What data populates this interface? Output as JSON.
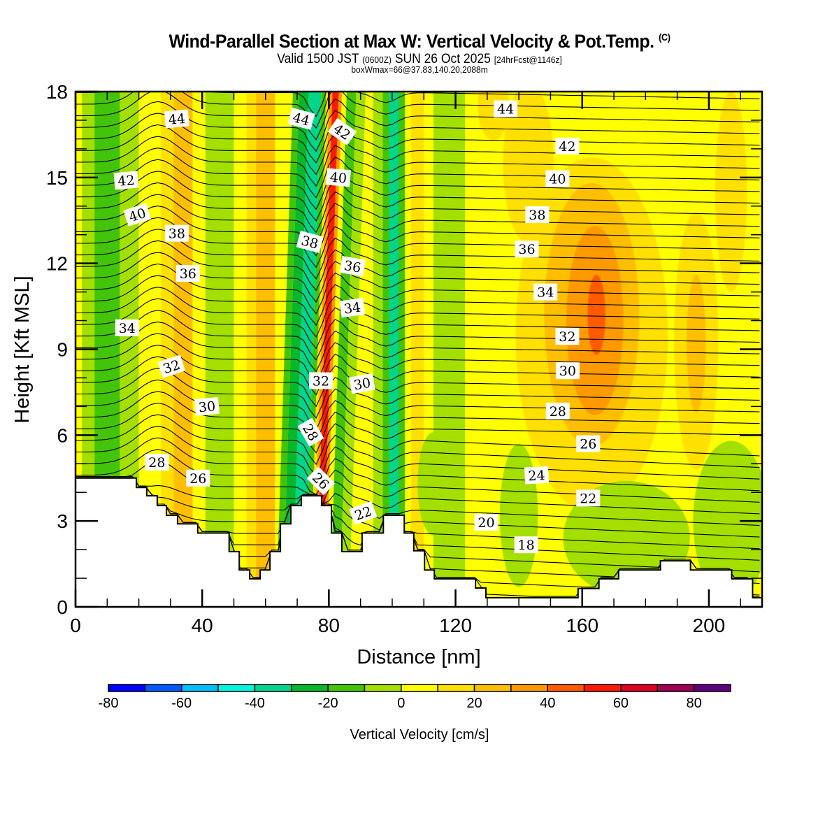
{
  "header": {
    "title": "Wind-Parallel Section at Max W: Vertical Velocity & Pot.Temp.",
    "copyright": "(C)",
    "valid_prefix": "Valid 1500 JST",
    "valid_utc": "(0600Z)",
    "valid_date": "SUN 26 Oct 2025",
    "forecast": "[24hrFcst@1146z]",
    "box_info": "boxWmax=66@37.83,140.20,2088m"
  },
  "chart_data": {
    "type": "heatmap",
    "title": "Wind-Parallel Section at Max W: Vertical Velocity & Pot.Temp.",
    "xlabel": "Distance [nm]",
    "ylabel": "Height [Kft MSL]",
    "xlim": [
      0,
      216.8
    ],
    "ylim": [
      0,
      18
    ],
    "x_ticks": [
      "0",
      "40",
      "80",
      "120",
      "160",
      "200"
    ],
    "x_tick_values": [
      0,
      40,
      80,
      120,
      160,
      200
    ],
    "y_ticks": [
      "0",
      "3",
      "6",
      "9",
      "12",
      "15",
      "18"
    ],
    "y_tick_values": [
      0,
      3,
      6,
      9,
      12,
      15,
      18
    ],
    "colorbar": {
      "label": "Vertical Velocity [cm/s]",
      "levels": [
        -80,
        -70,
        -60,
        -50,
        -40,
        -30,
        -20,
        -10,
        0,
        10,
        20,
        30,
        40,
        50,
        60,
        70,
        80,
        90
      ],
      "tick_labels": [
        "-80",
        "-60",
        "-40",
        "-20",
        "0",
        "20",
        "40",
        "60",
        "80"
      ],
      "tick_values": [
        -80,
        -60,
        -40,
        -20,
        0,
        20,
        40,
        60,
        80
      ],
      "colors": [
        "#0000ff",
        "#0059ff",
        "#00bfff",
        "#00f5e0",
        "#00d68a",
        "#07b82c",
        "#42c40a",
        "#a3e000",
        "#ffff00",
        "#ffe000",
        "#ffbf00",
        "#ff9900",
        "#ff5a00",
        "#ff1a00",
        "#de0020",
        "#9c0050",
        "#5e0080"
      ]
    },
    "w_field_columns": [
      {
        "x0": 0,
        "x1": 2,
        "w": 5
      },
      {
        "x0": 2,
        "x1": 6,
        "w": -5
      },
      {
        "x0": 6,
        "x1": 14,
        "w": -15
      },
      {
        "x0": 14,
        "x1": 20,
        "w": -5
      },
      {
        "x0": 20,
        "x1": 27,
        "w": 5
      },
      {
        "x0": 27,
        "x1": 31,
        "w": 15
      },
      {
        "x0": 31,
        "x1": 37,
        "w": 25
      },
      {
        "x0": 37,
        "x1": 41,
        "w": 5
      },
      {
        "x0": 41,
        "x1": 50,
        "w": -5
      },
      {
        "x0": 50,
        "x1": 54,
        "w": 5
      },
      {
        "x0": 54,
        "x1": 57,
        "w": 15
      },
      {
        "x0": 57,
        "x1": 63,
        "w": 25
      },
      {
        "x0": 63,
        "x1": 66,
        "w": 5
      },
      {
        "x0": 66,
        "x1": 68,
        "w": -15
      },
      {
        "x0": 68,
        "x1": 71,
        "w": -25
      },
      {
        "x0": 71,
        "x1": 75,
        "w": -35
      },
      {
        "x0": 75,
        "x1": 76.5,
        "w": -15
      },
      {
        "x0": 76.5,
        "x1": 77.5,
        "w": 15
      },
      {
        "x0": 77.5,
        "x1": 78.5,
        "w": 35
      },
      {
        "x0": 78.5,
        "x1": 80.5,
        "w": 55
      },
      {
        "x0": 80.5,
        "x1": 81.5,
        "w": 35
      },
      {
        "x0": 81.5,
        "x1": 83,
        "w": 5
      },
      {
        "x0": 83,
        "x1": 86,
        "w": -15
      },
      {
        "x0": 86,
        "x1": 89,
        "w": -5
      },
      {
        "x0": 89,
        "x1": 94,
        "w": 5
      },
      {
        "x0": 94,
        "x1": 97,
        "w": -5
      },
      {
        "x0": 97,
        "x1": 99,
        "w": -15
      },
      {
        "x0": 99,
        "x1": 102,
        "w": -35
      },
      {
        "x0": 102,
        "x1": 104,
        "w": -15
      },
      {
        "x0": 104,
        "x1": 106,
        "w": 5
      },
      {
        "x0": 106,
        "x1": 110,
        "w": 15
      },
      {
        "x0": 110,
        "x1": 113,
        "w": 5
      },
      {
        "x0": 113,
        "x1": 123,
        "w": -5
      },
      {
        "x0": 123,
        "x1": 128,
        "w": 5
      },
      {
        "x0": 128,
        "x1": 216.8,
        "w": 5
      }
    ],
    "w_field_blobs": [
      {
        "cx": 143,
        "cy": 15.5,
        "rx": 8,
        "ry": 2.8,
        "w": 15
      },
      {
        "cx": 163,
        "cy": 9.5,
        "rx": 24,
        "ry": 6.2,
        "w": 15
      },
      {
        "cx": 163,
        "cy": 10.2,
        "rx": 15,
        "ry": 4.6,
        "w": 25
      },
      {
        "cx": 164,
        "cy": 10.0,
        "rx": 9,
        "ry": 3.3,
        "w": 35
      },
      {
        "cx": 164.5,
        "cy": 10.2,
        "rx": 2.8,
        "ry": 1.4,
        "w": 45
      },
      {
        "cx": 196,
        "cy": 9.3,
        "rx": 7,
        "ry": 4.5,
        "w": 15
      },
      {
        "cx": 196,
        "cy": 9.2,
        "rx": 3,
        "ry": 2.4,
        "w": 25
      },
      {
        "cx": 207,
        "cy": 14.5,
        "rx": 5,
        "ry": 3.5,
        "w": 15
      },
      {
        "cx": 140,
        "cy": 3.2,
        "rx": 6,
        "ry": 2.5,
        "w": -5
      },
      {
        "cx": 174,
        "cy": 2.4,
        "rx": 20,
        "ry": 2.0,
        "w": -5
      },
      {
        "cx": 207,
        "cy": 3.0,
        "rx": 12,
        "ry": 2.8,
        "w": -5
      },
      {
        "cx": 113,
        "cy": 4.3,
        "rx": 5,
        "ry": 1.8,
        "w": -5
      },
      {
        "cx": 132,
        "cy": 17.5,
        "rx": 5,
        "ry": 1.2,
        "w": 15
      }
    ],
    "terrain": [
      [
        0,
        4.5
      ],
      [
        19.2,
        4.5
      ],
      [
        19.2,
        4.17
      ],
      [
        22.5,
        4.17
      ],
      [
        22.5,
        3.88
      ],
      [
        25.8,
        3.88
      ],
      [
        25.8,
        3.54
      ],
      [
        28.7,
        3.54
      ],
      [
        28.7,
        3.2
      ],
      [
        32.2,
        3.2
      ],
      [
        32.2,
        2.9
      ],
      [
        38.6,
        2.9
      ],
      [
        38.6,
        2.58
      ],
      [
        48.5,
        2.58
      ],
      [
        48.5,
        1.93
      ],
      [
        51.7,
        1.93
      ],
      [
        51.7,
        1.29
      ],
      [
        55,
        1.29
      ],
      [
        55,
        0.98
      ],
      [
        58.3,
        0.98
      ],
      [
        58.3,
        1.29
      ],
      [
        61.4,
        1.29
      ],
      [
        61.4,
        1.93
      ],
      [
        64.7,
        1.93
      ],
      [
        64.7,
        2.9
      ],
      [
        68,
        2.9
      ],
      [
        68,
        3.54
      ],
      [
        71.3,
        3.54
      ],
      [
        71.3,
        3.88
      ],
      [
        77.7,
        3.88
      ],
      [
        77.7,
        3.54
      ],
      [
        80.8,
        3.54
      ],
      [
        80.8,
        2.58
      ],
      [
        84.1,
        2.58
      ],
      [
        84.1,
        1.93
      ],
      [
        88,
        1.93
      ],
      [
        88,
        1.93
      ],
      [
        90.5,
        1.93
      ],
      [
        90.5,
        2.58
      ],
      [
        97.2,
        2.58
      ],
      [
        97.2,
        3.2
      ],
      [
        103.8,
        3.2
      ],
      [
        103.8,
        2.58
      ],
      [
        106.8,
        2.58
      ],
      [
        106.8,
        1.96
      ],
      [
        110.2,
        1.96
      ],
      [
        110.2,
        1.29
      ],
      [
        113.3,
        1.29
      ],
      [
        113.3,
        0.98
      ],
      [
        126.3,
        0.98
      ],
      [
        126.3,
        0.66
      ],
      [
        129.6,
        0.66
      ],
      [
        129.6,
        0.32
      ],
      [
        158.7,
        0.32
      ],
      [
        158.7,
        0.64
      ],
      [
        165.3,
        0.64
      ],
      [
        165.3,
        0.98
      ],
      [
        171.5,
        0.98
      ],
      [
        171.5,
        1.29
      ],
      [
        184.7,
        1.29
      ],
      [
        184.7,
        1.61
      ],
      [
        194.2,
        1.61
      ],
      [
        194.2,
        1.29
      ],
      [
        207.2,
        1.29
      ],
      [
        207.2,
        0.98
      ],
      [
        213.8,
        0.98
      ],
      [
        213.8,
        0.32
      ],
      [
        216.8,
        0.32
      ]
    ],
    "theta_contours": {
      "interval_K": 1,
      "labeled_levels": [
        18,
        20,
        22,
        24,
        26,
        28,
        30,
        32,
        34,
        36,
        38,
        40,
        42,
        44
      ],
      "labels": [
        {
          "text": "44",
          "x": 32,
          "y": 17.05,
          "angle": -5
        },
        {
          "text": "42",
          "x": 16,
          "y": 14.9,
          "angle": -5
        },
        {
          "text": "40",
          "x": 19.5,
          "y": 13.7,
          "angle": -18
        },
        {
          "text": "38",
          "x": 32,
          "y": 13.05,
          "angle": 0
        },
        {
          "text": "36",
          "x": 35.5,
          "y": 11.65,
          "angle": 0
        },
        {
          "text": "34",
          "x": 16.3,
          "y": 9.75,
          "angle": 0
        },
        {
          "text": "32",
          "x": 30.3,
          "y": 8.4,
          "angle": -18
        },
        {
          "text": "30",
          "x": 41.5,
          "y": 7.0,
          "angle": -5
        },
        {
          "text": "28",
          "x": 25.7,
          "y": 5.05,
          "angle": 0
        },
        {
          "text": "26",
          "x": 38.7,
          "y": 4.5,
          "angle": 0
        },
        {
          "text": "44",
          "x": 71.3,
          "y": 17.05,
          "angle": 15
        },
        {
          "text": "42",
          "x": 84.2,
          "y": 16.6,
          "angle": 35
        },
        {
          "text": "40",
          "x": 83,
          "y": 15.0,
          "angle": 5
        },
        {
          "text": "38",
          "x": 74,
          "y": 12.75,
          "angle": 15
        },
        {
          "text": "36",
          "x": 87.5,
          "y": 11.9,
          "angle": 10
        },
        {
          "text": "34",
          "x": 87.4,
          "y": 10.45,
          "angle": -8
        },
        {
          "text": "32",
          "x": 77.5,
          "y": 7.9,
          "angle": 0
        },
        {
          "text": "30",
          "x": 90.5,
          "y": 7.8,
          "angle": -10
        },
        {
          "text": "28",
          "x": 74.3,
          "y": 6.1,
          "angle": 60
        },
        {
          "text": "26",
          "x": 77.5,
          "y": 4.4,
          "angle": 45
        },
        {
          "text": "22",
          "x": 90.8,
          "y": 3.28,
          "angle": -20
        },
        {
          "text": "44",
          "x": 135.8,
          "y": 17.4,
          "angle": 0
        },
        {
          "text": "42",
          "x": 155.3,
          "y": 16.1,
          "angle": 0
        },
        {
          "text": "40",
          "x": 152.2,
          "y": 14.96,
          "angle": 0
        },
        {
          "text": "38",
          "x": 145.8,
          "y": 13.7,
          "angle": 0
        },
        {
          "text": "36",
          "x": 142.5,
          "y": 12.5,
          "angle": 0
        },
        {
          "text": "34",
          "x": 148.4,
          "y": 11.0,
          "angle": 0
        },
        {
          "text": "32",
          "x": 155.3,
          "y": 9.45,
          "angle": 0
        },
        {
          "text": "30",
          "x": 155.4,
          "y": 8.25,
          "angle": 0
        },
        {
          "text": "28",
          "x": 152.3,
          "y": 6.84,
          "angle": 0
        },
        {
          "text": "26",
          "x": 161.9,
          "y": 5.7,
          "angle": 0
        },
        {
          "text": "24",
          "x": 145.6,
          "y": 4.6,
          "angle": -3
        },
        {
          "text": "22",
          "x": 161.9,
          "y": 3.8,
          "angle": 0
        },
        {
          "text": "20",
          "x": 129.7,
          "y": 2.95,
          "angle": 0
        },
        {
          "text": "18",
          "x": 142.3,
          "y": 2.17,
          "angle": 0
        }
      ]
    }
  }
}
